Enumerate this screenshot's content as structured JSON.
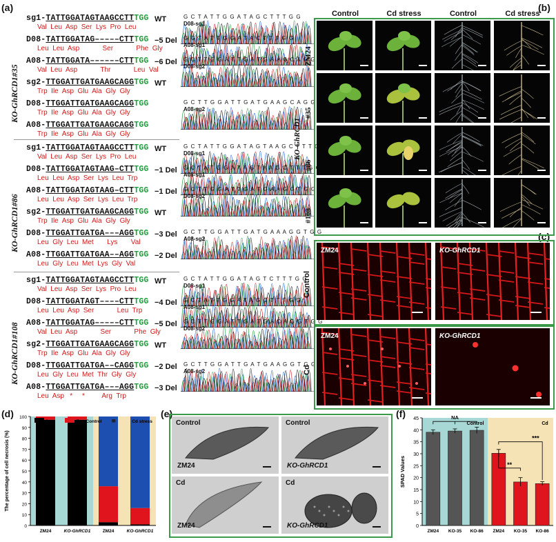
{
  "panels": {
    "a": "(a)",
    "b": "(b)",
    "c": "(c)",
    "d": "(d)",
    "e": "(e)",
    "f": "(f)"
  },
  "panel_a": {
    "groups": [
      {
        "name": "KO-GhRCD1#35",
        "rows": [
          {
            "id": "sg1",
            "prefix": "sg1-",
            "seq": "TATTGGATAGTAAGCCTT",
            "pam": "TGG",
            "tag": "WT",
            "aa": "Val  Leu  Asp  Ser  Lys  Pro  Leu",
            "aa_color": "#d01818",
            "chrom": {
              "seq": "G C T A T T G G A T A G C T T T G G",
              "id": "D08-sg1"
            }
          },
          {
            "id": "d08a",
            "prefix": "D08-",
            "seq": "TATTGGATAG–––––CTT",
            "pam": "TGG",
            "tag": "−5 Del",
            "aa": "Leu  Leu  Asp            Ser            Phe  Gly",
            "aa_color": "#d01818",
            "aa2_color": "#1a8fd0",
            "chrom": {
              "seq": "G G T A T T G G A T A C T T T G G",
              "id": "A08-sg1"
            }
          },
          {
            "id": "a08a",
            "prefix": "A08-",
            "seq": "TATTGGATA––––––CTT",
            "pam": "TGG",
            "tag": "−6 Del",
            "aa": "Val  Leu  Asp            Thr            Leu  Val",
            "aa_color": "#d01818",
            "chrom": {
              "seq": "G C T T G G A T T G A T G A A G C A G G T G G",
              "id": "D08-sg2"
            }
          },
          {
            "id": "sg2a",
            "prefix": "sg2-",
            "seq": "TTGGATTGATGAAGCAGG",
            "pam": "TGG",
            "tag": "WT",
            "aa": "Trp  Ile  Asp  Glu  Ala  Gly  Gly",
            "aa_color": "#d01818",
            "chrom": {
              "seq": "",
              "id": ""
            }
          },
          {
            "id": "d08b",
            "prefix": "D08-",
            "seq": "TTGGATTGATGAAGCAGG",
            "pam": "TGG",
            "tag": "",
            "aa": "Trp  Ile  Asp  Glu  Ala  Gly  Gly",
            "aa_color": "#d01818",
            "chrom": {
              "seq": "G C T T G G A T T G A T G A A G C A G G T G G",
              "id": "A08-sg2"
            }
          },
          {
            "id": "a08b",
            "prefix": "A08-",
            "seq": "TTGGATTGATGAAGCAGG",
            "pam": "TGG",
            "tag": "",
            "aa": "Trp  Ile  Asp  Glu  Ala  Gly  Gly",
            "aa_color": "#d01818",
            "chrom": {
              "seq": "",
              "id": ""
            }
          }
        ]
      },
      {
        "name": "KO-GhRCD1#86",
        "rows": [
          {
            "id": "sg1b",
            "prefix": "sg1-",
            "seq": "TATTGGATAGTAAGCCTT",
            "pam": "TGG",
            "tag": "WT",
            "aa": "Val  Leu  Asp  Ser  Lys  Pro  Leu",
            "aa_color": "#d01818",
            "chrom": {
              "seq": "G C T A T T G G A T A G T A A G C T T T G G",
              "id": "D08-sg1"
            }
          },
          {
            "id": "d08c",
            "prefix": "D08-",
            "seq": "TATTGGATAGTAAG–CTT",
            "pam": "TGG",
            "tag": "−1 Del",
            "aa": "Leu  Leu  Asp  Ser  Lys  Leu  Trp",
            "aa_color": "#d01818",
            "chrom": {
              "seq": "G C T A T G G A T A G T A A G C T T T G G",
              "id": "A08-sg1"
            }
          },
          {
            "id": "a08c",
            "prefix": "A08-",
            "seq": "TATTGGATAGTAAG–CTT",
            "pam": "TGG",
            "tag": "−1 Del",
            "aa": "Leu  Leu  Asp  Ser  Lys  Leu  Trp",
            "aa_color": "#d01818",
            "chrom": {
              "seq": "G C T T G G A T T G A T G A A G G T G G",
              "id": "D08-sg2"
            }
          },
          {
            "id": "sg2b",
            "prefix": "sg2-",
            "seq": "TTGGATTGATGAAGCAGG",
            "pam": "TGG",
            "tag": "WT",
            "aa": "Trp  Ile  Asp  Glu  Ala  Gly  Gly",
            "aa_color": "#d01818",
            "chrom": {
              "seq": "",
              "id": ""
            }
          },
          {
            "id": "d08d",
            "prefix": "D08-",
            "seq": "TTGGATTGATGA–––AGG",
            "pam": "TGG",
            "tag": "−3 Del",
            "aa": "Leu  Gly  Leu  Met       Lys       Val",
            "aa_color": "#d01818",
            "chrom": {
              "seq": "G C T T G G A T T G A T G A A A G G T G G",
              "id": "A08-sg2"
            }
          },
          {
            "id": "a08d",
            "prefix": "A08-",
            "seq": "TTGGATTGATGAA––AGG",
            "pam": "TGG",
            "tag": "−2 Del",
            "aa": "Leu  Gly  Leu  Met  Lys  Gly  Val",
            "aa_color": "#d01818",
            "chrom": {
              "seq": "",
              "id": ""
            }
          }
        ]
      },
      {
        "name": "KO-GhRCD1#108",
        "rows": [
          {
            "id": "sg1c",
            "prefix": "sg1-",
            "seq": "TATTGGATAGTAAGCCTT",
            "pam": "TGG",
            "tag": "WT",
            "aa": "Val  Leu  Asp  Ser  Lys  Pro  Leu",
            "aa_color": "#d01818",
            "chrom": {
              "seq": "G C T A T T G G A T A G T C T T T G G",
              "id": "D08-sg1"
            }
          },
          {
            "id": "d08e",
            "prefix": "D08-",
            "seq": "TATTGGATAGT––––CTT",
            "pam": "TGG",
            "tag": "−4 Del",
            "aa": "Leu  Leu  Asp  Ser            Leu  Trp",
            "aa_color": "#d01818",
            "chrom": {
              "seq": "G C T A T T G G A T A G C T T T G G",
              "id": "A08-sg1"
            }
          },
          {
            "id": "a08e",
            "prefix": "A08-",
            "seq": "TATTGGATAG–––––CTT",
            "pam": "TGG",
            "tag": "−5 Del",
            "aa": "Val  Leu  Asp            Ser            Phe  Gly",
            "aa_color": "#d01818",
            "chrom": {
              "seq": "G C T T G G A T T G A T G A C A G G T G G",
              "id": "D08-sg2"
            }
          },
          {
            "id": "sg2c",
            "prefix": "sg2-",
            "seq": "TTGGATTGATGAAGCAGG",
            "pam": "TGG",
            "tag": "WT",
            "aa": "Trp  Ile  Asp  Glu  Ala  Gly  Gly",
            "aa_color": "#d01818",
            "chrom": {
              "seq": "",
              "id": ""
            }
          },
          {
            "id": "d08f",
            "prefix": "D08-",
            "seq": "TTGGATTGATGA––CAGG",
            "pam": "TGG",
            "tag": "−2 Del",
            "aa": "Leu  Gly  Leu  Met  Thr  Gly  Gly",
            "aa_color": "#d01818",
            "chrom": {
              "seq": "G C T T G G A T T G A T G A A G G T G G",
              "id": "A08-sg2"
            }
          },
          {
            "id": "a08f",
            "prefix": "A08-",
            "seq": "TTGGATTGATGA–––AGG",
            "pam": "TGG",
            "tag": "−3 Del",
            "aa": "Leu  Asp   *     *         Arg  Trp",
            "aa_color": "#d01818",
            "chrom": {
              "seq": "",
              "id": ""
            }
          }
        ]
      }
    ]
  },
  "panel_b": {
    "col_headers": [
      "Control",
      "Cd stress",
      "Control",
      "Cd stress"
    ],
    "row_labels": [
      "ZM24",
      "#35",
      "#86",
      "#108"
    ],
    "group_label": "KO-GhRCD1"
  },
  "panel_c": {
    "row_labels": [
      "Control",
      "Cd"
    ],
    "image_labels": [
      "ZM24",
      "KO-GhRCD1",
      "ZM24",
      "KO-GhRCD1"
    ]
  },
  "panel_d": {
    "chart_data": {
      "type": "bar",
      "stacked": true,
      "ylabel": "The percentage of cell necrosis (%)",
      "ylim": [
        0,
        100
      ],
      "yticks": [
        0,
        10,
        20,
        30,
        40,
        50,
        60,
        70,
        80,
        90,
        100
      ],
      "categories": [
        "ZM24",
        "KO-GhRCD1",
        "ZM24",
        "KO-GhRCD1"
      ],
      "group_labels": [
        "Control",
        "Cd stress"
      ],
      "legend": [
        "I",
        "II",
        "III"
      ],
      "colors": [
        "#000000",
        "#e0141c",
        "#1c4fb0"
      ],
      "series": [
        {
          "name": "I",
          "values": [
            97,
            97,
            3,
            1
          ]
        },
        {
          "name": "II",
          "values": [
            3,
            3,
            33,
            15
          ]
        },
        {
          "name": "III",
          "values": [
            0,
            0,
            64,
            84
          ]
        }
      ],
      "bg_colors": [
        "#a8d8d5",
        "#f5e2b5"
      ]
    }
  },
  "panel_e": {
    "labels": [
      "Control",
      "Control",
      "Cd",
      "Cd"
    ],
    "sub_labels": [
      "ZM24",
      "KO-GhRCD1",
      "ZM24",
      "KO-GhRCD1"
    ]
  },
  "panel_f": {
    "chart_data": {
      "type": "bar",
      "ylabel": "SPAD Values",
      "ylim": [
        0,
        45
      ],
      "yticks": [
        0,
        5,
        10,
        15,
        20,
        25,
        30,
        35,
        40,
        45
      ],
      "categories": [
        "ZM24",
        "KO-35",
        "KO-86",
        "ZM24",
        "KO-35",
        "KO-86"
      ],
      "values": [
        39,
        39.5,
        39.8,
        30.2,
        18.2,
        17.5
      ],
      "errors": [
        1.0,
        0.9,
        1.3,
        1.6,
        1.8,
        0.8
      ],
      "colors": [
        "#555555",
        "#555555",
        "#555555",
        "#e0141c",
        "#e0141c",
        "#e0141c"
      ],
      "group_labels": [
        "Control",
        "Cd"
      ],
      "bg_colors": [
        "#a8d8d5",
        "#f5e2b5"
      ],
      "annotations": [
        "NA",
        "**",
        "***"
      ]
    }
  }
}
